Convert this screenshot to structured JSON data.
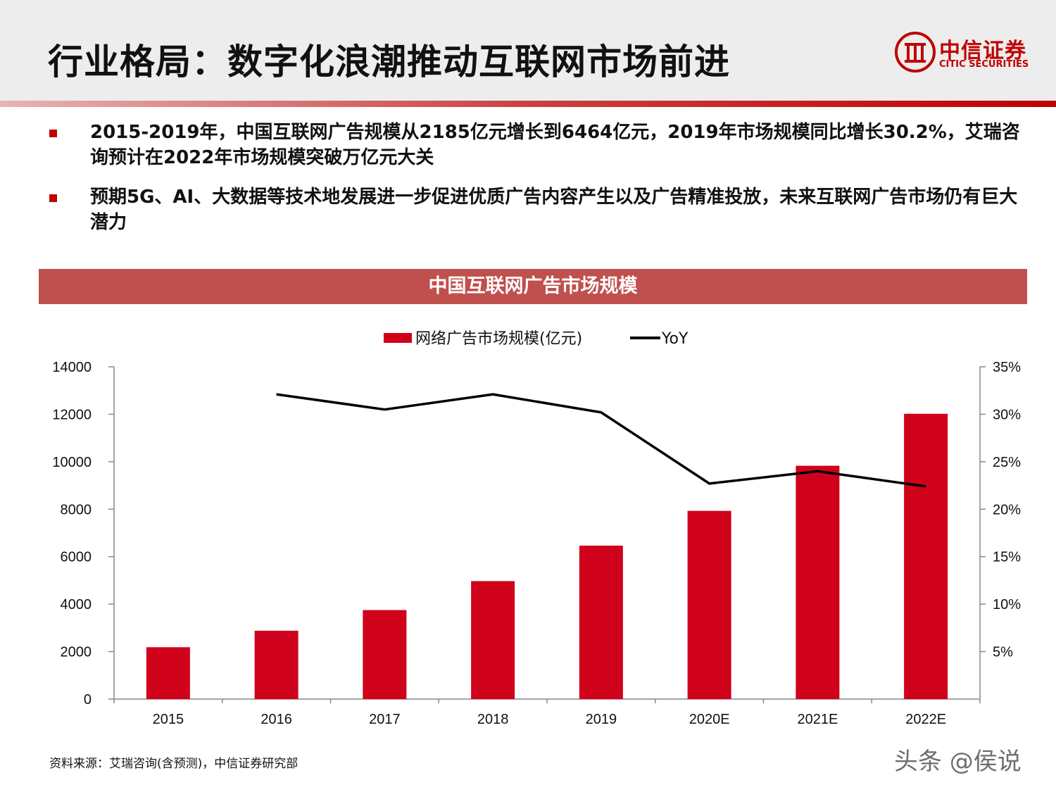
{
  "header": {
    "title": "行业格局：数字化浪潮推动互联网市场前进",
    "logo_cn": "中信证券",
    "logo_en": "CITIC SECURITIES"
  },
  "bullets": [
    "2015-2019年，中国互联网广告规模从2185亿元增长到6464亿元，2019年市场规模同比增长30.2%，艾瑞咨询预计在2022年市场规模突破万亿元大关",
    "预期5G、AI、大数据等技术地发展进一步促进优质广告内容产生以及广告精准投放，未来互联网广告市场仍有巨大潜力"
  ],
  "colors": {
    "accent": "#c00000",
    "banner": "#c0504d",
    "bar": "#d0021b",
    "line": "#000000"
  },
  "chart_banner": "中国互联网广告市场规模",
  "chart_data": {
    "type": "bar",
    "categories": [
      "2015",
      "2016",
      "2017",
      "2018",
      "2019",
      "2020E",
      "2021E",
      "2022E"
    ],
    "series": [
      {
        "name": "网络广告市场规模(亿元)",
        "type": "bar",
        "axis": "left",
        "values": [
          2185,
          2880,
          3750,
          4970,
          6464,
          7930,
          9830,
          12020
        ]
      },
      {
        "name": "YoY",
        "type": "line",
        "axis": "right",
        "values": [
          null,
          32.1,
          30.5,
          32.1,
          30.2,
          22.7,
          24.0,
          22.4
        ]
      }
    ],
    "y_left": {
      "min": 0,
      "max": 14000,
      "ticks": [
        0,
        2000,
        4000,
        6000,
        8000,
        10000,
        12000,
        14000
      ]
    },
    "y_right": {
      "min": 0,
      "max": 35,
      "ticks": [
        5,
        10,
        15,
        20,
        25,
        30,
        35
      ],
      "tick_labels": [
        "5%",
        "10%",
        "15%",
        "20%",
        "25%",
        "30%",
        "35%"
      ]
    },
    "legend": "top-center",
    "grid": false
  },
  "source": "资料来源：艾瑞咨询(含预测)，中信证券研究部",
  "watermark": "头条 @侯说"
}
